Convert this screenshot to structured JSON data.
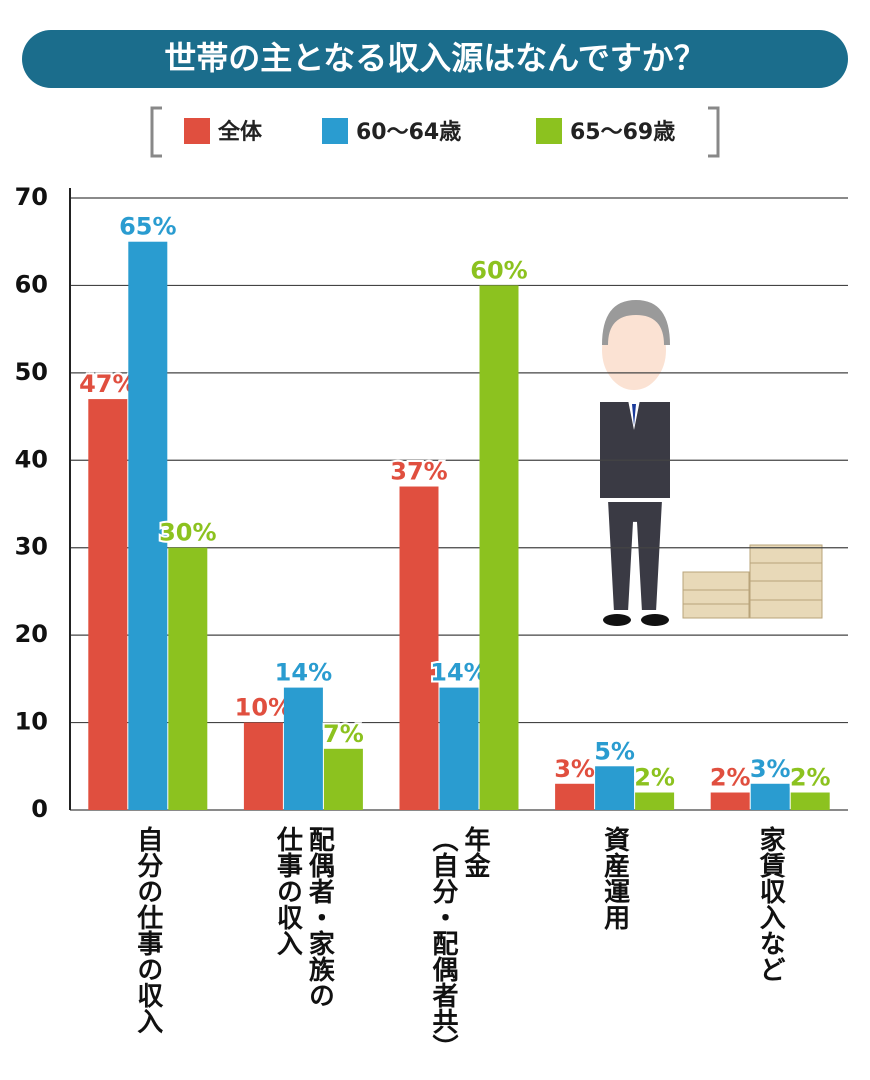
{
  "chart_data": {
    "type": "bar",
    "title": "世帯の主となる収入源はなんですか？",
    "categories": [
      [
        "自分の仕事の収入"
      ],
      [
        "配偶者・家族の",
        "仕事の収入"
      ],
      [
        "年金",
        "（自分・配偶者共）"
      ],
      [
        "資産運用"
      ],
      [
        "家賃収入など"
      ]
    ],
    "series": [
      {
        "name": "全体",
        "color": "#e04f3f",
        "values": [
          47,
          10,
          37,
          3,
          2
        ],
        "value_labels": [
          "47%",
          "10%",
          "37%",
          "3%",
          "2%"
        ]
      },
      {
        "name": "60～64歳",
        "color": "#2a9cd0",
        "values": [
          65,
          14,
          14,
          5,
          3
        ],
        "value_labels": [
          "65%",
          "14%",
          "14%",
          "5%",
          "3%"
        ]
      },
      {
        "name": "65～69歳",
        "color": "#8cc21f",
        "values": [
          30,
          7,
          60,
          2,
          2
        ],
        "value_labels": [
          "30%",
          "7%",
          "60%",
          "2%",
          "2%"
        ]
      }
    ],
    "ylim": [
      0,
      70
    ],
    "yticks": [
      0,
      10,
      20,
      30,
      40,
      50,
      60,
      70
    ],
    "grid": true
  }
}
